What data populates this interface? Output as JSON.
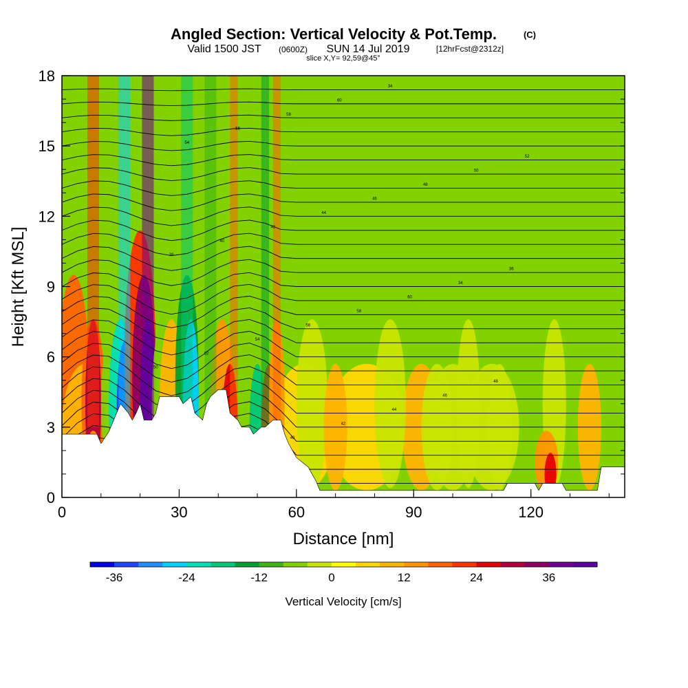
{
  "chart_data": {
    "type": "heatmap",
    "title": "Angled Section: Vertical Velocity & Pot.Temp.",
    "title_suffix": "(C)",
    "subtitle_a": "Valid 1500 JST",
    "subtitle_b": "(0600Z)",
    "subtitle_c": "SUN 14 Jul 2019",
    "subtitle_d": "[12hrFcst@2312z]",
    "slice_label": "slice X,Y= 92,59@45°",
    "xlabel": "Distance [nm]",
    "ylabel": "Height [Kft MSL]",
    "xlim": [
      0,
      144
    ],
    "ylim": [
      0,
      18
    ],
    "x_ticks": [
      0,
      30,
      60,
      90,
      120
    ],
    "y_ticks": [
      0,
      3,
      6,
      9,
      12,
      15,
      18
    ],
    "colorbar": {
      "label": "Vertical Velocity [cm/s]",
      "min": -40,
      "max": 44,
      "step": 4,
      "ticks": [
        -36,
        -24,
        -12,
        0,
        12,
        24,
        36
      ],
      "colors": [
        "#0000e6",
        "#1e46ff",
        "#1e90ff",
        "#00d2ff",
        "#00e0b4",
        "#00c878",
        "#00a032",
        "#3cb414",
        "#82d200",
        "#c8e600",
        "#ffff00",
        "#ffd700",
        "#ffb400",
        "#ff9600",
        "#ff6400",
        "#ff3200",
        "#e60000",
        "#b4003c",
        "#8c0064",
        "#6e0096",
        "#5a00a0"
      ]
    },
    "terrain_kft": [
      {
        "x": 0,
        "z": 2.7
      },
      {
        "x": 9,
        "z": 2.7
      },
      {
        "x": 10,
        "z": 2.3
      },
      {
        "x": 12,
        "z": 2.8
      },
      {
        "x": 14,
        "z": 3.6
      },
      {
        "x": 15,
        "z": 4.0
      },
      {
        "x": 17,
        "z": 3.6
      },
      {
        "x": 18,
        "z": 3.3
      },
      {
        "x": 19,
        "z": 3.6
      },
      {
        "x": 20,
        "z": 4.0
      },
      {
        "x": 21,
        "z": 3.3
      },
      {
        "x": 23,
        "z": 3.3
      },
      {
        "x": 24,
        "z": 3.6
      },
      {
        "x": 25,
        "z": 4.3
      },
      {
        "x": 27,
        "z": 4.3
      },
      {
        "x": 30,
        "z": 4.3
      },
      {
        "x": 31,
        "z": 4.0
      },
      {
        "x": 33,
        "z": 4.3
      },
      {
        "x": 34,
        "z": 3.6
      },
      {
        "x": 36,
        "z": 3.3
      },
      {
        "x": 37,
        "z": 4.0
      },
      {
        "x": 38,
        "z": 4.3
      },
      {
        "x": 40,
        "z": 4.6
      },
      {
        "x": 42,
        "z": 4.6
      },
      {
        "x": 43,
        "z": 3.6
      },
      {
        "x": 45,
        "z": 3.3
      },
      {
        "x": 46,
        "z": 3.0
      },
      {
        "x": 48,
        "z": 3.0
      },
      {
        "x": 49,
        "z": 2.7
      },
      {
        "x": 51,
        "z": 3.0
      },
      {
        "x": 52,
        "z": 3.0
      },
      {
        "x": 54,
        "z": 3.3
      },
      {
        "x": 56,
        "z": 3.3
      },
      {
        "x": 57,
        "z": 2.7
      },
      {
        "x": 58,
        "z": 2.3
      },
      {
        "x": 59,
        "z": 2.0
      },
      {
        "x": 60,
        "z": 1.7
      },
      {
        "x": 63,
        "z": 1.3
      },
      {
        "x": 64,
        "z": 1.0
      },
      {
        "x": 65,
        "z": 0.7
      },
      {
        "x": 66,
        "z": 0.3
      },
      {
        "x": 70,
        "z": 0.3
      },
      {
        "x": 90,
        "z": 0.3
      },
      {
        "x": 113,
        "z": 0.3
      },
      {
        "x": 114,
        "z": 0.6
      },
      {
        "x": 121,
        "z": 0.6
      },
      {
        "x": 122,
        "z": 0.3
      },
      {
        "x": 123,
        "z": 0.6
      },
      {
        "x": 128,
        "z": 0.6
      },
      {
        "x": 129,
        "z": 0.3
      },
      {
        "x": 137,
        "z": 0.3
      },
      {
        "x": 138,
        "z": 1.3
      },
      {
        "x": 144,
        "z": 1.3
      }
    ],
    "theta_contour_labels": [
      "34",
      "36",
      "38",
      "40",
      "42",
      "44",
      "46",
      "48",
      "50",
      "52",
      "54",
      "56",
      "58",
      "60"
    ]
  }
}
